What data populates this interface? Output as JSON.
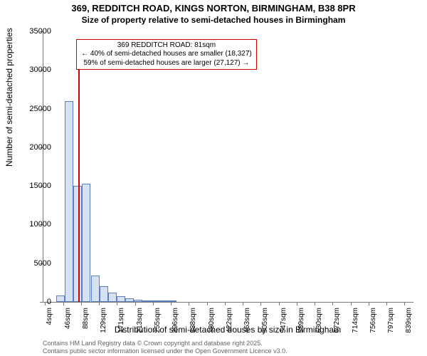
{
  "titles": {
    "line1": "369, REDDITCH ROAD, KINGS NORTON, BIRMINGHAM, B38 8PR",
    "line2": "Size of property relative to semi-detached houses in Birmingham"
  },
  "chart": {
    "type": "histogram",
    "ylabel": "Number of semi-detached properties",
    "xlabel": "Distribution of semi-detached houses by size in Birmingham",
    "ylim": [
      0,
      35000
    ],
    "ytick_step": 5000,
    "yticks": [
      0,
      5000,
      10000,
      15000,
      20000,
      25000,
      30000,
      35000
    ],
    "xlim": [
      0,
      860
    ],
    "xticks": [
      {
        "pos": 4,
        "label": "4sqm"
      },
      {
        "pos": 46,
        "label": "46sqm"
      },
      {
        "pos": 88,
        "label": "88sqm"
      },
      {
        "pos": 129,
        "label": "129sqm"
      },
      {
        "pos": 171,
        "label": "171sqm"
      },
      {
        "pos": 213,
        "label": "213sqm"
      },
      {
        "pos": 255,
        "label": "255sqm"
      },
      {
        "pos": 296,
        "label": "296sqm"
      },
      {
        "pos": 338,
        "label": "338sqm"
      },
      {
        "pos": 380,
        "label": "380sqm"
      },
      {
        "pos": 422,
        "label": "422sqm"
      },
      {
        "pos": 463,
        "label": "463sqm"
      },
      {
        "pos": 505,
        "label": "505sqm"
      },
      {
        "pos": 547,
        "label": "547sqm"
      },
      {
        "pos": 589,
        "label": "589sqm"
      },
      {
        "pos": 630,
        "label": "630sqm"
      },
      {
        "pos": 672,
        "label": "672sqm"
      },
      {
        "pos": 714,
        "label": "714sqm"
      },
      {
        "pos": 756,
        "label": "756sqm"
      },
      {
        "pos": 797,
        "label": "797sqm"
      },
      {
        "pos": 839,
        "label": "839sqm"
      }
    ],
    "bar_width_sqm": 20,
    "bar_fill": "#d6e2f3",
    "bar_stroke": "#5b7fbf",
    "grid_color": "#cccccc",
    "axis_color": "#777777",
    "background_color": "#ffffff",
    "font_family": "Arial",
    "title_fontsize": 13,
    "label_fontsize": 12,
    "tick_fontsize": 11,
    "bars": [
      {
        "x0": 30,
        "x1": 50,
        "value": 800
      },
      {
        "x0": 50,
        "x1": 70,
        "value": 26000
      },
      {
        "x0": 70,
        "x1": 90,
        "value": 15000
      },
      {
        "x0": 90,
        "x1": 110,
        "value": 15300
      },
      {
        "x0": 110,
        "x1": 130,
        "value": 3400
      },
      {
        "x0": 130,
        "x1": 150,
        "value": 2000
      },
      {
        "x0": 150,
        "x1": 170,
        "value": 1200
      },
      {
        "x0": 170,
        "x1": 190,
        "value": 700
      },
      {
        "x0": 190,
        "x1": 210,
        "value": 450
      },
      {
        "x0": 210,
        "x1": 230,
        "value": 300
      },
      {
        "x0": 230,
        "x1": 250,
        "value": 200
      },
      {
        "x0": 250,
        "x1": 270,
        "value": 150
      },
      {
        "x0": 270,
        "x1": 290,
        "value": 100
      },
      {
        "x0": 290,
        "x1": 310,
        "value": 80
      }
    ],
    "marker": {
      "position_sqm": 81,
      "color": "#cc0000",
      "height_value": 30000
    },
    "callout": {
      "line1": "369 REDDITCH ROAD: 81sqm",
      "line2": "← 40% of semi-detached houses are smaller (18,327)",
      "line3": "59% of semi-detached houses are larger (27,127) →",
      "border_color": "#cc0000",
      "bg_color": "#ffffff",
      "fontsize": 10,
      "left_sqm": 78,
      "top_value": 34000
    }
  },
  "footnote": {
    "line1": "Contains HM Land Registry data © Crown copyright and database right 2025.",
    "line2": "Contains public sector information licensed under the Open Government Licence v3.0."
  }
}
